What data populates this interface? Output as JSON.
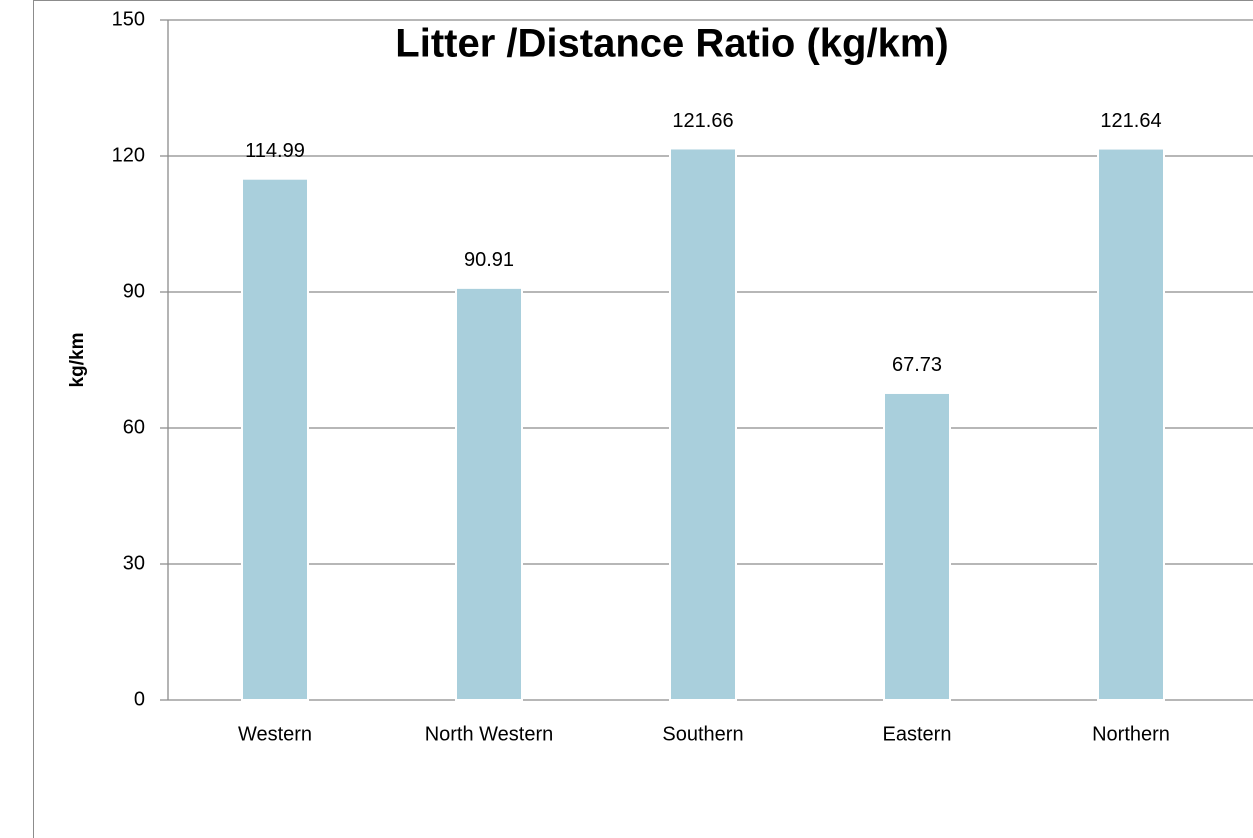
{
  "chart_data": {
    "type": "bar",
    "title": "Litter /Distance Ratio (kg/km)",
    "y_label": "kg/km",
    "categories": [
      "Western",
      "North Western",
      "Southern",
      "Eastern",
      "Northern"
    ],
    "values": [
      114.99,
      90.91,
      121.66,
      67.73,
      121.64
    ],
    "color": "#a9cfdc",
    "ylim": [
      0,
      150
    ],
    "yticks": [
      0,
      30,
      60,
      90,
      120,
      150
    ],
    "grid": true
  }
}
